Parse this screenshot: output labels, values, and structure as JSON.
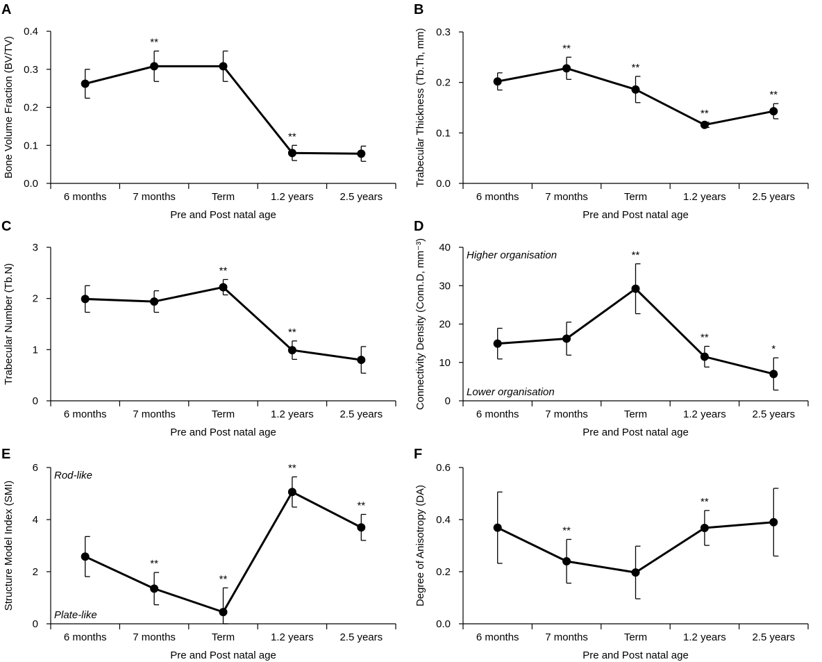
{
  "figure": {
    "panels": [
      {
        "letter": "A"
      },
      {
        "letter": "B"
      },
      {
        "letter": "C"
      },
      {
        "letter": "D"
      },
      {
        "letter": "E"
      },
      {
        "letter": "F"
      }
    ]
  },
  "chart_data": [
    {
      "panel": "A",
      "type": "line",
      "categories": [
        "6 months",
        "7 months",
        "Term",
        "1.2 years",
        "2.5 years"
      ],
      "values": [
        0.262,
        0.308,
        0.308,
        0.08,
        0.078
      ],
      "error": [
        0.038,
        0.04,
        0.04,
        0.02,
        0.02
      ],
      "significance": [
        "",
        "**",
        "",
        "**",
        ""
      ],
      "ylabel": "Bone Volume Fraction (BV/TV)",
      "xlabel": "Pre and Post natal age",
      "ylim": [
        0,
        0.4
      ],
      "yticks": [
        "0.0",
        "0.1",
        "0.2",
        "0.3",
        "0.4"
      ],
      "annotations": []
    },
    {
      "panel": "B",
      "type": "line",
      "categories": [
        "6 months",
        "7 months",
        "Term",
        "1.2 years",
        "2.5 years"
      ],
      "values": [
        0.202,
        0.228,
        0.186,
        0.116,
        0.143
      ],
      "error": [
        0.017,
        0.022,
        0.026,
        0.005,
        0.015
      ],
      "significance": [
        "",
        "**",
        "**",
        "**",
        "**"
      ],
      "ylabel": "Trabecular Thickness (Tb.Th, mm)",
      "xlabel": "Pre and Post natal age",
      "ylim": [
        0,
        0.3
      ],
      "yticks": [
        "0.0",
        "0.1",
        "0.2",
        "0.3"
      ],
      "annotations": []
    },
    {
      "panel": "C",
      "type": "line",
      "categories": [
        "6 months",
        "7 months",
        "Term",
        "1.2 years",
        "2.5 years"
      ],
      "values": [
        1.99,
        1.94,
        2.22,
        0.99,
        0.8
      ],
      "error": [
        0.26,
        0.21,
        0.15,
        0.18,
        0.26
      ],
      "significance": [
        "",
        "",
        "**",
        "**",
        ""
      ],
      "ylabel": "Trabecular Number (Tb.N)",
      "xlabel": "Pre and Post natal age",
      "ylim": [
        0,
        3
      ],
      "yticks": [
        "0",
        "1",
        "2",
        "3"
      ],
      "annotations": []
    },
    {
      "panel": "D",
      "type": "line",
      "categories": [
        "6 months",
        "7 months",
        "Term",
        "1.2 years",
        "2.5 years"
      ],
      "values": [
        14.9,
        16.2,
        29.2,
        11.5,
        7.0
      ],
      "error": [
        4.0,
        4.3,
        6.5,
        2.7,
        4.2
      ],
      "significance": [
        "",
        "",
        "**",
        "**",
        "*"
      ],
      "ylabel": "Connectivity Density (Conn.D, mm⁻³)",
      "xlabel": "Pre and Post natal age",
      "ylim": [
        0,
        40
      ],
      "yticks": [
        "0",
        "10",
        "20",
        "30",
        "40"
      ],
      "annotations": [
        {
          "text": "Higher organisation",
          "position": "top-left"
        },
        {
          "text": "Lower organisation",
          "position": "bottom-left"
        }
      ]
    },
    {
      "panel": "E",
      "type": "line",
      "categories": [
        "6 months",
        "7 months",
        "Term",
        "1.2 years",
        "2.5 years"
      ],
      "values": [
        2.58,
        1.35,
        0.45,
        5.06,
        3.7
      ],
      "error": [
        0.77,
        0.62,
        0.93,
        0.58,
        0.5
      ],
      "significance": [
        "",
        "**",
        "**",
        "**",
        "**"
      ],
      "ylabel": "Structure Model Index (SMI)",
      "xlabel": "Pre and Post natal age",
      "ylim": [
        0,
        6
      ],
      "yticks": [
        "0",
        "2",
        "4",
        "6"
      ],
      "annotations": [
        {
          "text": "Rod-like",
          "position": "top-left"
        },
        {
          "text": "Plate-like",
          "position": "bottom-left"
        }
      ]
    },
    {
      "panel": "F",
      "type": "line",
      "categories": [
        "6 months",
        "7 months",
        "Term",
        "1.2 years",
        "2.5 years"
      ],
      "values": [
        0.369,
        0.24,
        0.197,
        0.368,
        0.39
      ],
      "error": [
        0.137,
        0.084,
        0.101,
        0.067,
        0.13
      ],
      "significance": [
        "",
        "**",
        "",
        "**",
        ""
      ],
      "ylabel": "Degree of Anisotropy (DA)",
      "xlabel": "Pre and Post natal age",
      "ylim": [
        0,
        0.6
      ],
      "yticks": [
        "0.0",
        "0.2",
        "0.4",
        "0.6"
      ],
      "annotations": []
    }
  ]
}
